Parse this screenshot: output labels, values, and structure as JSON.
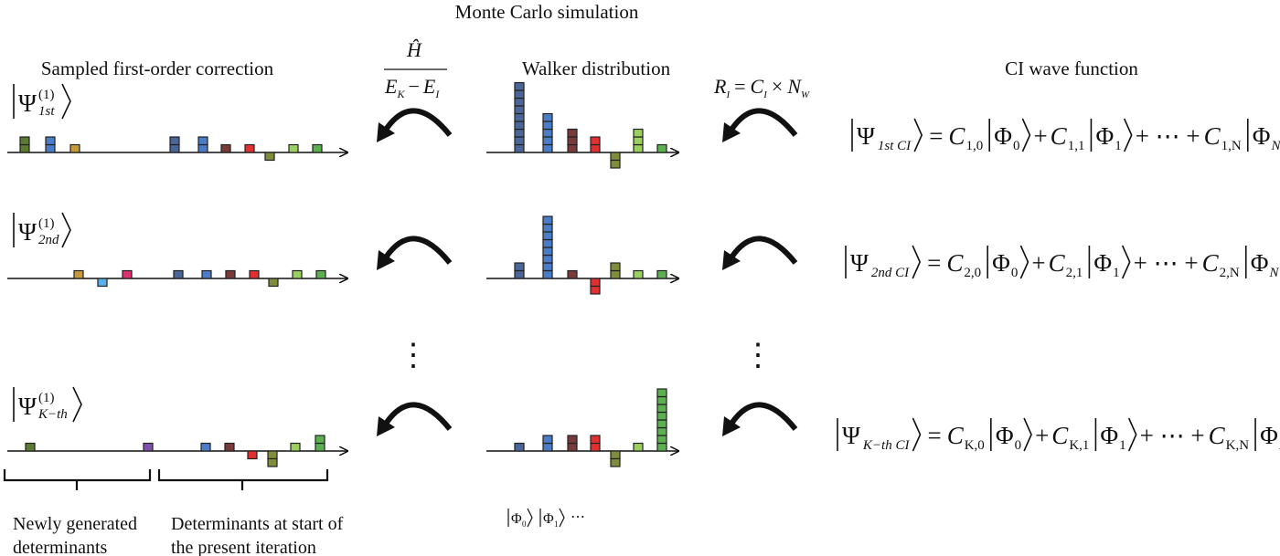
{
  "titles": {
    "top": "Monte Carlo simulation",
    "left": "Sampled first-order correction",
    "middle": "Walker distribution",
    "right": "CI wave function"
  },
  "operators": {
    "numerator": "Ĥ",
    "denominator_left": "E",
    "denominator_left_sub": "K",
    "minus": "−",
    "denominator_right": "E",
    "denominator_right_sub": "I",
    "ratio": {
      "R": "R",
      "R_sub": "I",
      "eq": "=",
      "C": "C",
      "C_sub": "I",
      "times": "×",
      "N": "N",
      "N_sub": "W"
    }
  },
  "rows": [
    {
      "left_ket": {
        "psi": "Ψ",
        "sup": "(1)",
        "sub": "1st"
      },
      "left_bars": [
        {
          "v": 2,
          "c": "#5b7a32"
        },
        {
          "v": 2,
          "c": "#4a7cc8"
        },
        {
          "v": 1,
          "c": "#c49a3a"
        },
        {
          "v": 2,
          "c": "#4a6698"
        },
        {
          "v": 2,
          "c": "#4a7cc8"
        },
        {
          "v": 1,
          "c": "#7a3a3a"
        },
        {
          "v": 1,
          "c": "#e23030"
        },
        {
          "v": -1,
          "c": "#7f8e3c"
        },
        {
          "v": 1,
          "c": "#9ad060"
        },
        {
          "v": 1,
          "c": "#5cb050"
        }
      ],
      "walkers": [
        {
          "v": 9,
          "c": "#4a6698"
        },
        {
          "v": 5,
          "c": "#4a7cc8"
        },
        {
          "v": 3,
          "c": "#7a3a3a"
        },
        {
          "v": 2,
          "c": "#e23030"
        },
        {
          "v": -2,
          "c": "#7f8e3c"
        },
        {
          "v": 3,
          "c": "#9ad060"
        },
        {
          "v": 1,
          "c": "#5cb050"
        }
      ],
      "equation": {
        "psi": "Ψ",
        "psi_sub": "1st  CI",
        "eq": "=",
        "C": "C",
        "phi": "Φ",
        "plus": "+",
        "dots": "+ ⋯ +",
        "c0_sub": "1,0",
        "c1_sub": "1,1",
        "cN_sub": "1,N",
        "phi0_sub": "0",
        "phi1_sub": "1",
        "phiN_sub": "N"
      }
    },
    {
      "left_ket": {
        "psi": "Ψ",
        "sup": "(1)",
        "sub": "2nd"
      },
      "left_bars": [
        {
          "v": 1,
          "c": "#c49a3a"
        },
        {
          "v": -1,
          "c": "#5ab0e8"
        },
        {
          "v": 1,
          "c": "#e03070"
        },
        {
          "v": 1,
          "c": "#4a6698"
        },
        {
          "v": 1,
          "c": "#4a7cc8"
        },
        {
          "v": 1,
          "c": "#7a3a3a"
        },
        {
          "v": 1,
          "c": "#e23030"
        },
        {
          "v": -1,
          "c": "#7f8e3c"
        },
        {
          "v": 1,
          "c": "#9ad060"
        },
        {
          "v": 1,
          "c": "#5cb050"
        }
      ],
      "walkers": [
        {
          "v": 2,
          "c": "#4a6698"
        },
        {
          "v": 8,
          "c": "#4a7cc8"
        },
        {
          "v": 1,
          "c": "#7a3a3a"
        },
        {
          "v": -2,
          "c": "#e23030"
        },
        {
          "v": 2,
          "c": "#7f8e3c"
        },
        {
          "v": 1,
          "c": "#9ad060"
        },
        {
          "v": 1,
          "c": "#5cb050"
        }
      ],
      "equation": {
        "psi": "Ψ",
        "psi_sub": "2nd  CI",
        "eq": "=",
        "C": "C",
        "phi": "Φ",
        "plus": "+",
        "dots": "+ ⋯ +",
        "c0_sub": "2,0",
        "c1_sub": "2,1",
        "cN_sub": "2,N",
        "phi0_sub": "0",
        "phi1_sub": "1",
        "phiN_sub": "N"
      }
    },
    {
      "left_ket": {
        "psi": "Ψ",
        "sup": "(1)",
        "sub": "K−th"
      },
      "left_bars": [
        {
          "v": 1,
          "c": "#5b7a32"
        },
        {
          "v": 1,
          "c": "#8050b0"
        },
        {
          "v": 1,
          "c": "#4a7cc8"
        },
        {
          "v": 1,
          "c": "#7a3a3a"
        },
        {
          "v": -1,
          "c": "#e23030"
        },
        {
          "v": -2,
          "c": "#7f8e3c"
        },
        {
          "v": 1,
          "c": "#9ad060"
        },
        {
          "v": 2,
          "c": "#5cb050"
        }
      ],
      "walkers": [
        {
          "v": 1,
          "c": "#4a6698"
        },
        {
          "v": 2,
          "c": "#4a7cc8"
        },
        {
          "v": 2,
          "c": "#7a3a3a"
        },
        {
          "v": 2,
          "c": "#e23030"
        },
        {
          "v": -2,
          "c": "#7f8e3c"
        },
        {
          "v": 1,
          "c": "#9ad060"
        },
        {
          "v": 8,
          "c": "#5cb050"
        }
      ],
      "equation": {
        "psi": "Ψ",
        "psi_sub": "K−th  CI",
        "eq": "=",
        "C": "C",
        "phi": "Φ",
        "plus": "+",
        "dots": "+ ⋯ +",
        "c0_sub": "K,0",
        "c1_sub": "K,1",
        "cN_sub": "K,N",
        "phi0_sub": "0",
        "phi1_sub": "1",
        "phiN_sub": "N"
      }
    }
  ],
  "vertical_dots": "⋮",
  "basis_labels": {
    "phi": "Φ",
    "sub0": "0",
    "sub1": "1",
    "ellipsis": "⋯"
  },
  "bottom_labels": {
    "new_line1": "Newly generated",
    "new_line2": "determinants",
    "start_line1": "Determinants at start of",
    "start_line2": "the present iteration"
  }
}
